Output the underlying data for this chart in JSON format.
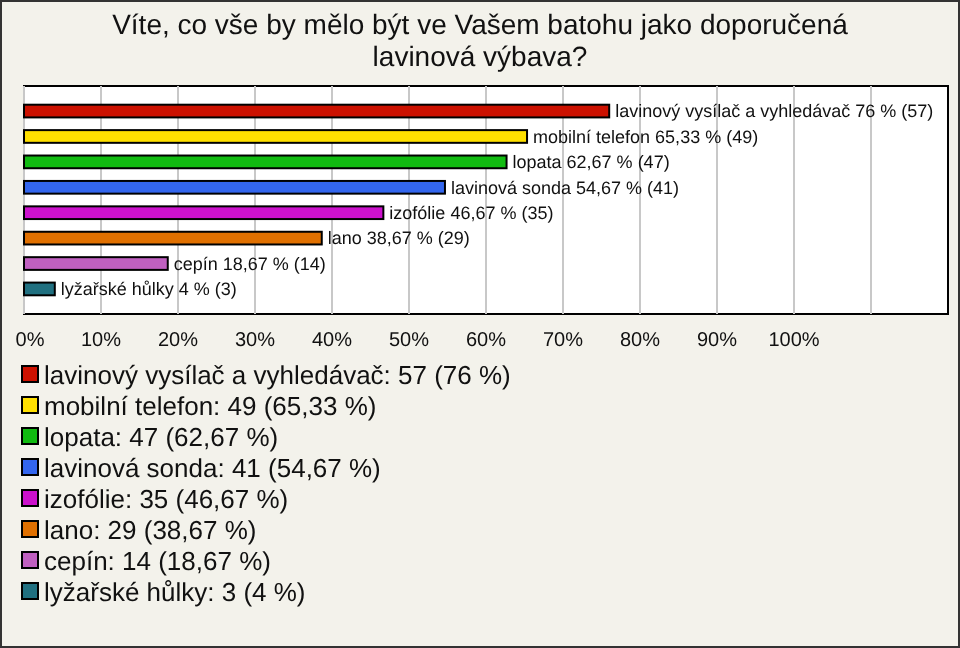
{
  "chart_data": {
    "type": "bar",
    "orientation": "horizontal",
    "title": "Víte, co vše by mělo být ve Vašem batohu jako doporučená lavinová výbava?",
    "categories": [
      "lavinový vysílač a vyhledávač",
      "mobilní telefon",
      "lopata",
      "lavinová sonda",
      "izofólie",
      "lano",
      "cepín",
      "lyžařské hůlky"
    ],
    "values": [
      76,
      65.33,
      62.67,
      54.67,
      46.67,
      38.67,
      18.67,
      4
    ],
    "colors": [
      "#cc1100",
      "#ffe000",
      "#11bb11",
      "#3366ee",
      "#cc11cc",
      "#e07000",
      "#c060c0",
      "#207080"
    ],
    "value_labels": [
      "76 % (57)",
      "65,33 % (49)",
      "62,67 % (47)",
      "54,67 % (41)",
      "46,67 % (35)",
      "38,67 % (29)",
      "18,67 % (14)",
      "4 % (3)"
    ],
    "xlim": [
      0,
      120
    ],
    "xticks": [
      {
        "value": 0,
        "label": "0%"
      },
      {
        "value": 10,
        "label": "10%"
      },
      {
        "value": 20,
        "label": "20%"
      },
      {
        "value": 30,
        "label": "30%"
      },
      {
        "value": 40,
        "label": "40%"
      },
      {
        "value": 50,
        "label": "50%"
      },
      {
        "value": 60,
        "label": "60%"
      },
      {
        "value": 70,
        "label": "70%"
      },
      {
        "value": 80,
        "label": "80%"
      },
      {
        "value": 90,
        "label": "90%"
      },
      {
        "value": 100,
        "label": "100%"
      },
      {
        "value": 110,
        "label": null
      }
    ],
    "grid": "x",
    "annotations": [
      "lavinový vysílač a vyhledávač: 57 (76 %)",
      "mobilní telefon: 49 (65,33 %)",
      "lopata: 47 (62,67 %)",
      "lavinová sonda: 41 (54,67 %)",
      "izofólie: 35 (46,67 %)",
      "lano: 29 (38,67 %)",
      "cepín: 14 (18,67 %)",
      "lyžařské hůlky: 3 (4 %)"
    ]
  }
}
